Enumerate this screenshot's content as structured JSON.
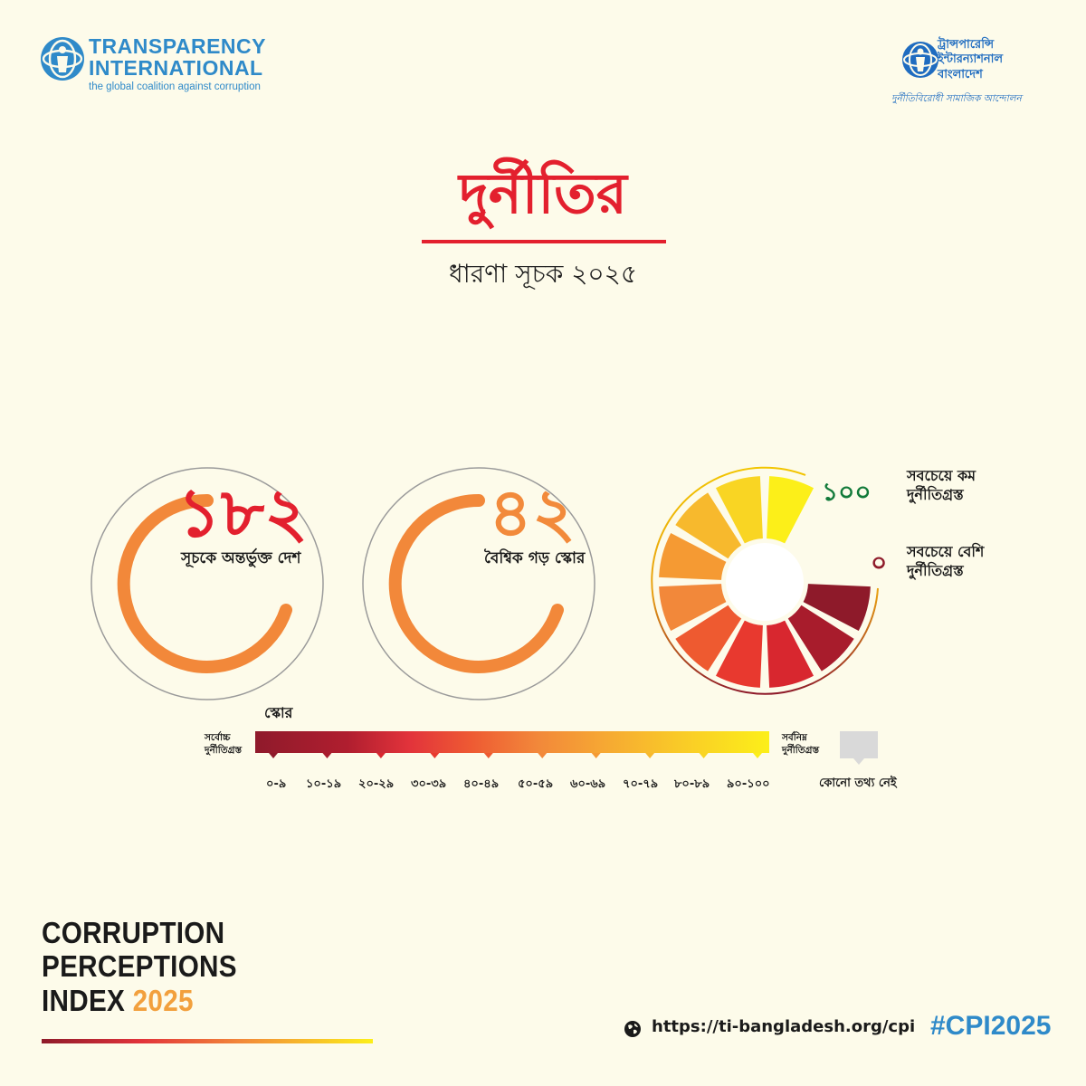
{
  "logos": {
    "ti_en": {
      "line1": "TRANSPARENCY",
      "line2": "INTERNATIONAL",
      "tagline": "the global coalition against corruption"
    },
    "ti_bd": {
      "line1": "ট্রান্সপারেন্সি",
      "line2": "ইন্টারন্যাশনাল",
      "line3": "বাংলাদেশ",
      "tagline": "দুর্নীতিবিরোধী সামাজিক আন্দোলন"
    },
    "colors": {
      "ti_blue": "#2f8ac9",
      "tib_blue": "#1f6cc0"
    }
  },
  "title": {
    "main": "দুর্নীতির",
    "sub": "ধারণা সূচক ২০২৫",
    "color": "#e3202e"
  },
  "stats": [
    {
      "value": "১৮২",
      "label": "সূচকে অন্তর্ভুক্ত দেশ",
      "color": "#e3202e"
    },
    {
      "value": "৪২",
      "label": "বৈশ্বিক গড় স্কোর",
      "color": "#f28a3b"
    }
  ],
  "gauge": {
    "max_value": "১০০",
    "max_label_1": "সবচেয়ে কম",
    "max_label_2": "দুর্নীতিগ্রস্ত",
    "min_value": "০",
    "min_label_1": "সবচেয়ে বেশি",
    "min_label_2": "দুর্নীতিগ্রস্ত",
    "max_color": "#127a3a",
    "min_color": "#8e1a2a"
  },
  "scale": {
    "title": "স্কোর",
    "left_label_1": "সর্বোচ্চ",
    "left_label_2": "দুর্নীতিগ্রস্ত",
    "right_label_1": "সর্বনিম্ন",
    "right_label_2": "দুর্নীতিগ্রস্ত",
    "ranges": [
      "০-৯",
      "১০-১৯",
      "২০-২৯",
      "৩০-৩৯",
      "৪০-৪৯",
      "৫০-৫৯",
      "৬০-৬৯",
      "৭০-৭৯",
      "৮০-৮৯",
      "৯০-১০০"
    ],
    "no_data": "কোনো তথ্য নেই",
    "colors": [
      "#8e1a2a",
      "#a81c2c",
      "#d8272f",
      "#e8392f",
      "#ee5a30",
      "#f2883a",
      "#f59a33",
      "#f7b92d",
      "#f9d523",
      "#fcef19"
    ]
  },
  "cpi": {
    "line1": "CORRUPTION",
    "line2": "PERCEPTIONS",
    "line3": "INDEX",
    "year": "2025"
  },
  "footer": {
    "url": "https://ti-bangladesh.org/cpi",
    "hashtag": "#CPI2025",
    "icon": "globe-icon"
  }
}
